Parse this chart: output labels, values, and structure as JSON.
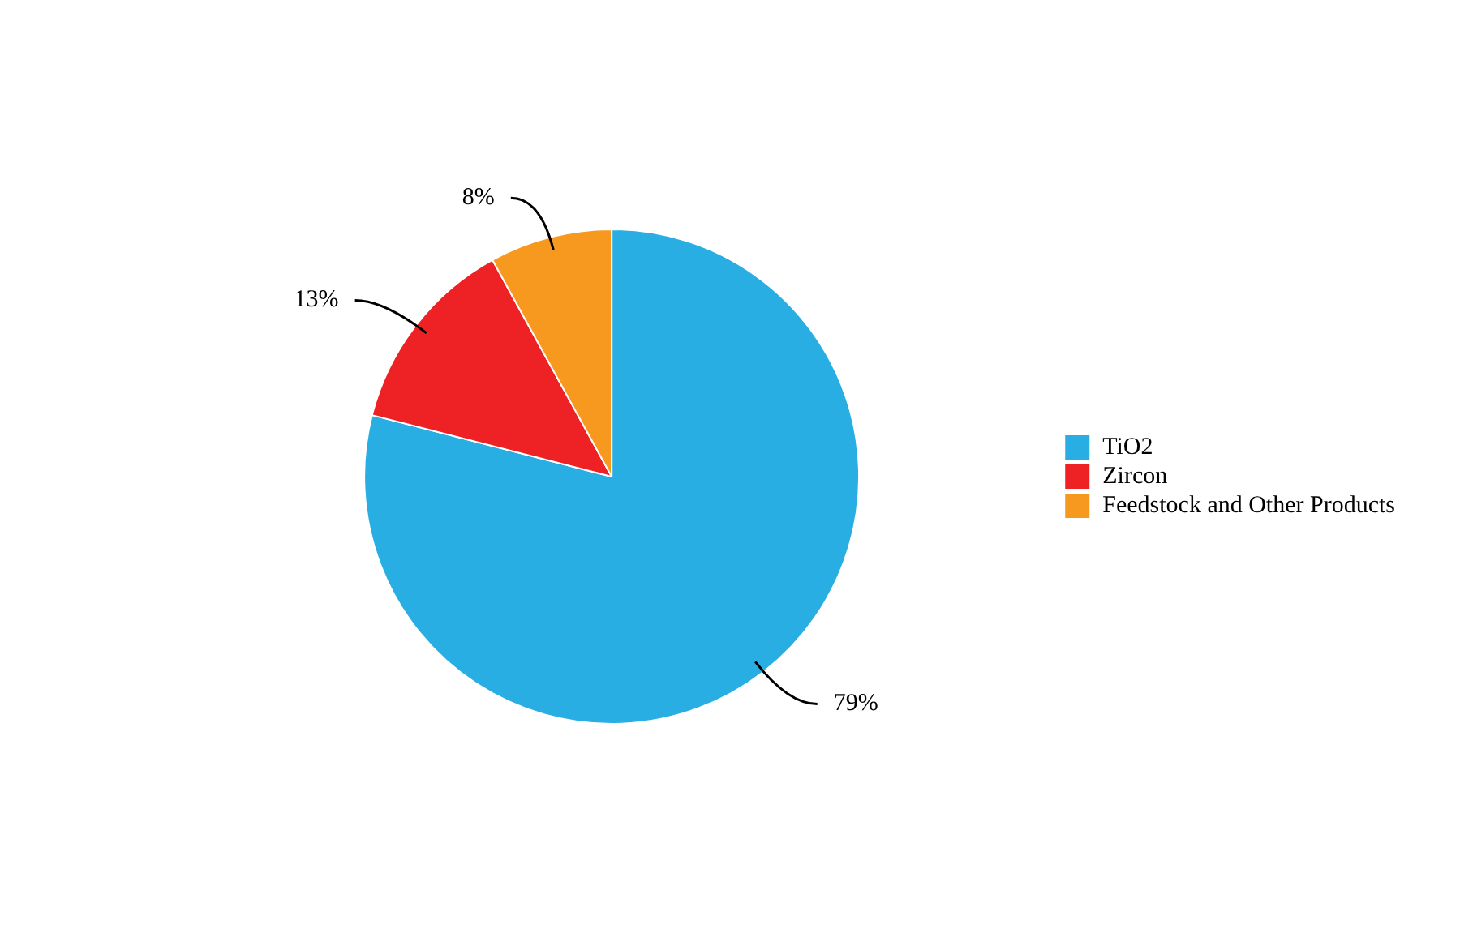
{
  "chart_data": {
    "type": "pie",
    "categories": [
      "TiO2",
      "Zircon",
      "Feedstock and Other Products"
    ],
    "values": [
      79,
      13,
      8
    ],
    "colors": [
      "#29aee3",
      "#ee2124",
      "#f7991f"
    ],
    "value_labels": [
      "79%",
      "13%",
      "8%"
    ],
    "legend": "right"
  }
}
